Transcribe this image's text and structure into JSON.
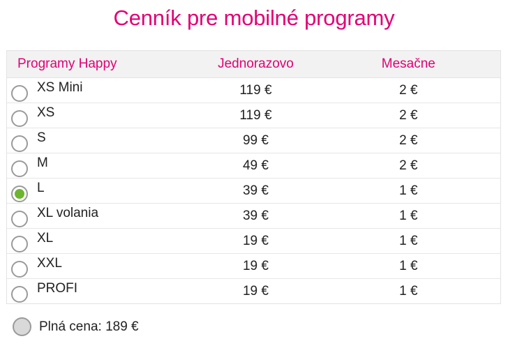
{
  "title": "Cenník pre mobilné programy",
  "table": {
    "headers": {
      "name": "Programy Happy",
      "once": "Jednorazovo",
      "month": "Mesačne"
    },
    "rows": [
      {
        "name": "XS Mini",
        "once": "119 €",
        "month": "2 €",
        "selected": false
      },
      {
        "name": "XS",
        "once": "119 €",
        "month": "2 €",
        "selected": false
      },
      {
        "name": "S",
        "once": "99 €",
        "month": "2 €",
        "selected": false
      },
      {
        "name": "M",
        "once": "49 €",
        "month": "2 €",
        "selected": false
      },
      {
        "name": "L",
        "once": "39 €",
        "month": "1 €",
        "selected": true
      },
      {
        "name": "XL volania",
        "once": "39 €",
        "month": "1 €",
        "selected": false
      },
      {
        "name": "XL",
        "once": "19 €",
        "month": "1 €",
        "selected": false
      },
      {
        "name": "XXL",
        "once": "19 €",
        "month": "1 €",
        "selected": false
      },
      {
        "name": "PROFI",
        "once": "19 €",
        "month": "1 €",
        "selected": false
      }
    ]
  },
  "footer": {
    "label": "Plná cena: 189 €"
  },
  "colors": {
    "accent": "#e20074",
    "selected": "#6cb52d",
    "header_bg": "#f2f2f2"
  }
}
